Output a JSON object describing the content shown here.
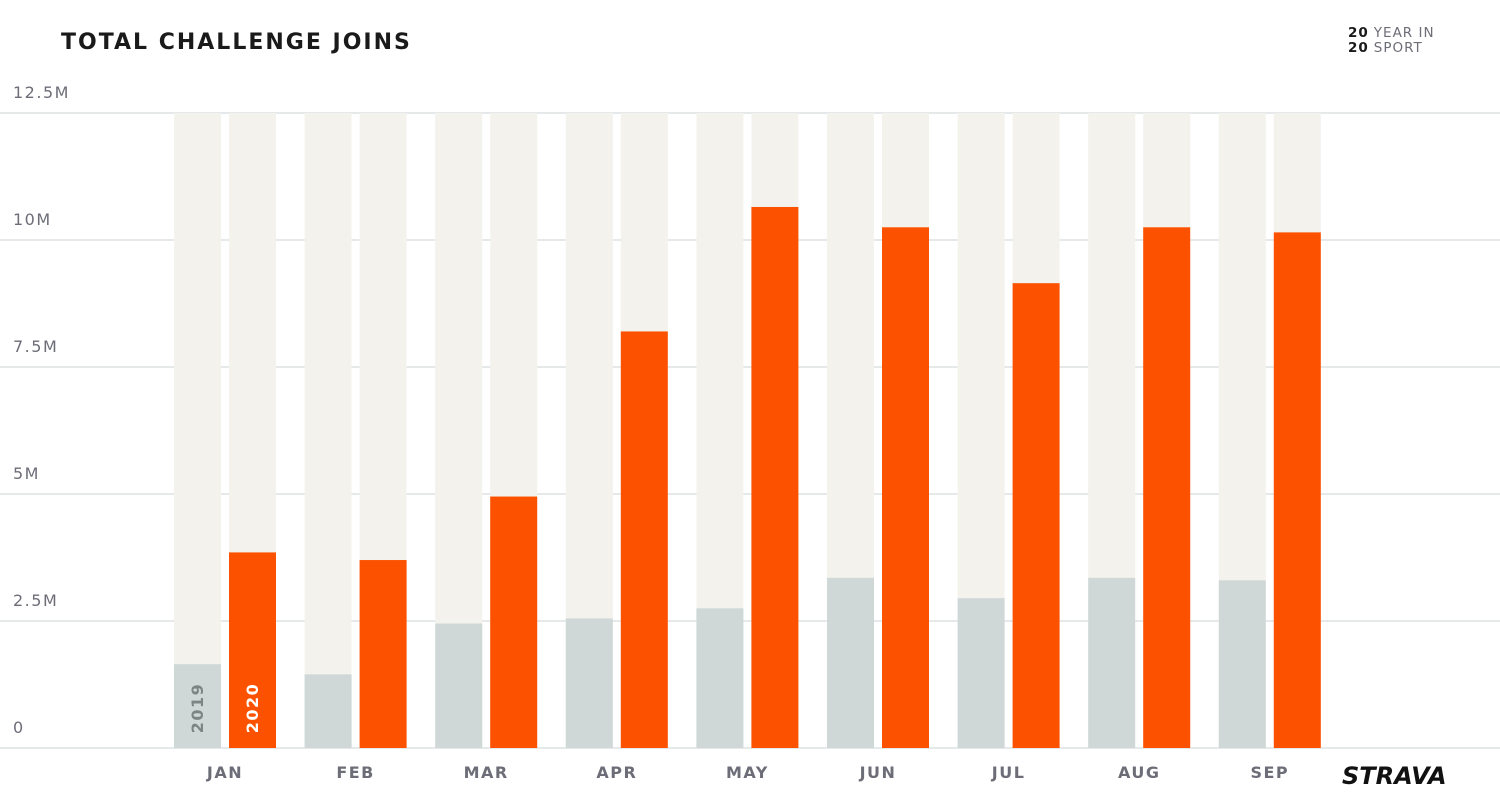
{
  "title": "TOTAL CHALLENGE JOINS",
  "badge": {
    "line1_num": "20",
    "line1_text": "YEAR IN",
    "line2_num": "20",
    "line2_text": "SPORT"
  },
  "logo": "STRAVA",
  "colors": {
    "series_2019": "#d0d8d7",
    "series_2020": "#fc5200",
    "track": "#f3f2ec",
    "grid": "#d8dcdc",
    "label": "#6d6d78"
  },
  "chart_data": {
    "type": "bar",
    "title": "TOTAL CHALLENGE JOINS",
    "xlabel": "",
    "ylabel": "",
    "categories": [
      "JAN",
      "FEB",
      "MAR",
      "APR",
      "MAY",
      "JUN",
      "JUL",
      "AUG",
      "SEP"
    ],
    "series": [
      {
        "name": "2019",
        "values": [
          1.65,
          1.45,
          2.45,
          2.55,
          2.75,
          3.35,
          2.95,
          3.35,
          3.3
        ]
      },
      {
        "name": "2020",
        "values": [
          3.85,
          3.7,
          4.95,
          8.2,
          10.65,
          10.25,
          9.15,
          10.25,
          10.15
        ]
      }
    ],
    "ylim": [
      0,
      12.5
    ],
    "yticks": [
      0,
      2.5,
      5,
      7.5,
      10,
      12.5
    ],
    "ytick_labels": [
      "0",
      "2.5M",
      "5M",
      "7.5M",
      "10M",
      "12.5M"
    ],
    "units": "millions",
    "grid": true,
    "legend": "series names printed inside the January bars"
  }
}
